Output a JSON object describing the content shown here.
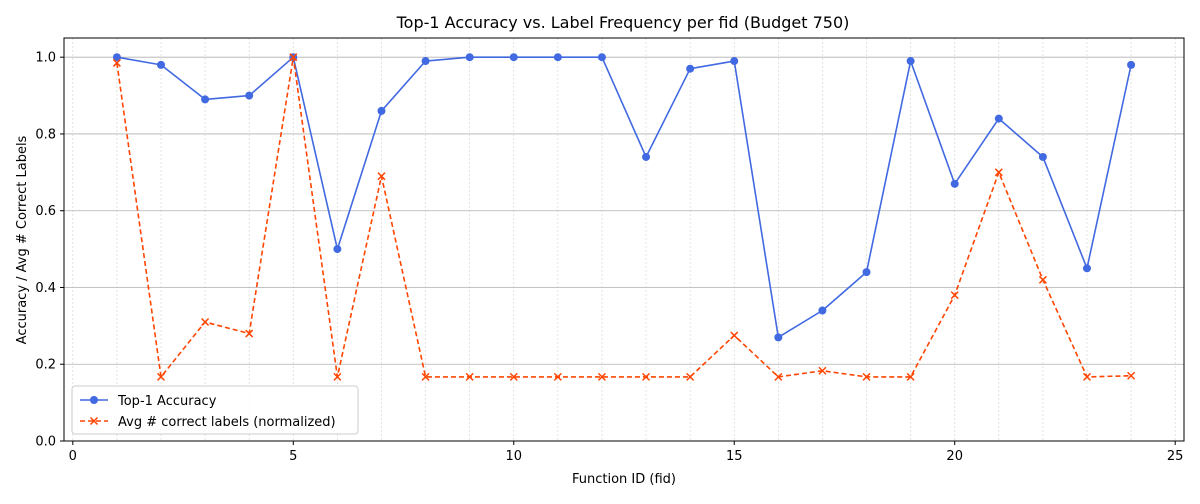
{
  "chart_data": {
    "type": "line",
    "title": "Top-1 Accuracy vs. Label Frequency per fid (Budget 750)",
    "xlabel": "Function ID (fid)",
    "ylabel": "Accuracy / Avg # Correct Labels",
    "xlim": [
      -0.2,
      25.2
    ],
    "ylim": [
      0.0,
      1.05
    ],
    "xticks": [
      0,
      5,
      10,
      15,
      20,
      25
    ],
    "yticks": [
      0.0,
      0.2,
      0.4,
      0.6,
      0.8,
      1.0
    ],
    "xtick_labels": [
      "0",
      "5",
      "10",
      "15",
      "20",
      "25"
    ],
    "ytick_labels": [
      "0.0",
      "0.2",
      "0.4",
      "0.6",
      "0.8",
      "1.0"
    ],
    "grid": {
      "y_major": true,
      "x_minor_dashed": true
    },
    "legend_position": "lower-left",
    "x": [
      1,
      2,
      3,
      4,
      5,
      6,
      7,
      8,
      9,
      10,
      11,
      12,
      13,
      14,
      15,
      16,
      17,
      18,
      19,
      20,
      21,
      22,
      23,
      24
    ],
    "series": [
      {
        "name": "Top-1 Accuracy",
        "color": "#4169e1",
        "marker": "circle",
        "linestyle": "solid",
        "values": [
          1.0,
          0.98,
          0.89,
          0.9,
          1.0,
          0.5,
          0.86,
          0.99,
          1.0,
          1.0,
          1.0,
          1.0,
          0.74,
          0.97,
          0.99,
          0.27,
          0.34,
          0.44,
          0.99,
          0.67,
          0.84,
          0.74,
          0.45,
          0.98
        ]
      },
      {
        "name": "Avg # correct labels (normalized)",
        "color": "#ff4500",
        "marker": "x",
        "linestyle": "dashed",
        "values": [
          0.985,
          0.167,
          0.31,
          0.28,
          1.0,
          0.167,
          0.69,
          0.167,
          0.167,
          0.167,
          0.167,
          0.167,
          0.167,
          0.167,
          0.275,
          0.167,
          0.183,
          0.167,
          0.167,
          0.38,
          0.7,
          0.42,
          0.167,
          0.17
        ]
      }
    ]
  }
}
